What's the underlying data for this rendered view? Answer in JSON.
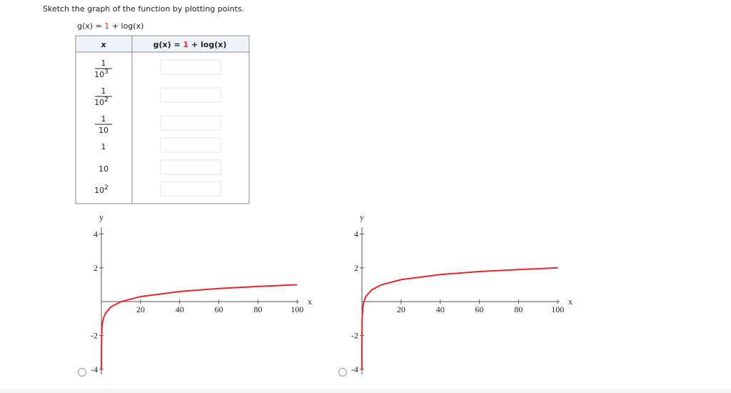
{
  "question": "Sketch the graph of the function by plotting points.",
  "function": {
    "name": "g(x) = ",
    "constant": "1",
    "rest": " + log(x)"
  },
  "table": {
    "header": {
      "x": "x",
      "g_name": "g(x) = ",
      "g_constant": "1",
      "g_rest": " + log(x)"
    },
    "rows": [
      {
        "num": "1",
        "base": "10",
        "exp": "3"
      },
      {
        "num": "1",
        "base": "10",
        "exp": "2"
      },
      {
        "num": "1",
        "base": "10"
      },
      {
        "base": "1"
      },
      {
        "base": "10"
      },
      {
        "base": "10",
        "exp": "2"
      }
    ]
  },
  "graphs": [
    {
      "x_label": "x",
      "y_label": "y",
      "xlim": [
        0,
        101
      ],
      "ylim": [
        -4.3,
        4.4
      ],
      "xticks": [
        20,
        40,
        60,
        80,
        100
      ],
      "yticks": [
        -4,
        -2,
        2,
        4
      ],
      "color": "#e8262a",
      "x": [
        0.001,
        0.01,
        0.1,
        0.5,
        1,
        2,
        5,
        10,
        20,
        40,
        60,
        80,
        100
      ],
      "y": [
        -4,
        -3,
        -2,
        -1.3,
        -1,
        -0.7,
        -0.3,
        0,
        0.3,
        0.6,
        0.78,
        0.9,
        1
      ]
    },
    {
      "x_label": "x",
      "y_label": "y",
      "xlim": [
        0,
        101
      ],
      "ylim": [
        -4.3,
        4.4
      ],
      "xticks": [
        20,
        40,
        60,
        80,
        100
      ],
      "yticks": [
        -4,
        -2,
        2,
        4
      ],
      "color": "#e8262a",
      "x": [
        0.0001,
        0.001,
        0.01,
        0.1,
        0.5,
        1,
        2,
        5,
        10,
        20,
        40,
        60,
        80,
        100
      ],
      "y": [
        -4,
        -3,
        -2,
        -1,
        -0.3,
        0,
        0.3,
        0.7,
        1,
        1.3,
        1.6,
        1.78,
        1.9,
        2
      ]
    }
  ]
}
